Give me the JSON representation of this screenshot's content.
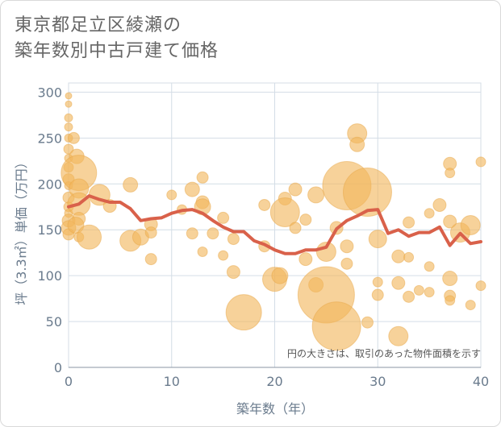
{
  "title": {
    "line1": "東京都足立区綾瀬の",
    "line2": "築年数別中古戸建て価格"
  },
  "chart_data": {
    "type": "scatter",
    "title": "東京都足立区綾瀬の築年数別中古戸建て価格",
    "xlabel": "築年数（年）",
    "ylabel": "坪（3.3㎡）単価（万円）",
    "xlim": [
      0,
      40
    ],
    "ylim": [
      0,
      310
    ],
    "xticks": [
      0,
      10,
      20,
      30,
      40
    ],
    "yticks": [
      0,
      50,
      100,
      150,
      200,
      250,
      300
    ],
    "grid": true,
    "note": "円の大きさは、取引のあった物件面積を示す",
    "colors": {
      "bubble": "#f2b75c",
      "line": "#d9614a",
      "grid": "#d4dde6",
      "text": "#6a7b8d"
    },
    "series": [
      {
        "type": "bubble",
        "points": [
          {
            "x": 0,
            "y": 296,
            "s": 4
          },
          {
            "x": 0,
            "y": 287,
            "s": 4
          },
          {
            "x": 0,
            "y": 272,
            "s": 5
          },
          {
            "x": 0,
            "y": 262,
            "s": 5
          },
          {
            "x": 0,
            "y": 250,
            "s": 5
          },
          {
            "x": 0,
            "y": 238,
            "s": 6
          },
          {
            "x": 0,
            "y": 228,
            "s": 5
          },
          {
            "x": 0,
            "y": 218,
            "s": 6
          },
          {
            "x": 0,
            "y": 205,
            "s": 7
          },
          {
            "x": 0,
            "y": 198,
            "s": 5
          },
          {
            "x": 0,
            "y": 185,
            "s": 7
          },
          {
            "x": 0,
            "y": 175,
            "s": 6
          },
          {
            "x": 0,
            "y": 168,
            "s": 5
          },
          {
            "x": 0,
            "y": 160,
            "s": 8
          },
          {
            "x": 0,
            "y": 152,
            "s": 9
          },
          {
            "x": 0,
            "y": 145,
            "s": 7
          },
          {
            "x": 0.5,
            "y": 250,
            "s": 7
          },
          {
            "x": 0.8,
            "y": 230,
            "s": 9
          },
          {
            "x": 1,
            "y": 212,
            "s": 22
          },
          {
            "x": 1,
            "y": 195,
            "s": 12
          },
          {
            "x": 1,
            "y": 178,
            "s": 14
          },
          {
            "x": 1,
            "y": 162,
            "s": 8
          },
          {
            "x": 0.7,
            "y": 155,
            "s": 10
          },
          {
            "x": 1,
            "y": 142,
            "s": 6
          },
          {
            "x": 2,
            "y": 142,
            "s": 15
          },
          {
            "x": 3,
            "y": 188,
            "s": 13
          },
          {
            "x": 4,
            "y": 176,
            "s": 8
          },
          {
            "x": 6,
            "y": 199,
            "s": 9
          },
          {
            "x": 6,
            "y": 138,
            "s": 13
          },
          {
            "x": 7,
            "y": 142,
            "s": 10
          },
          {
            "x": 8,
            "y": 156,
            "s": 8
          },
          {
            "x": 8,
            "y": 147,
            "s": 7
          },
          {
            "x": 8,
            "y": 118,
            "s": 7
          },
          {
            "x": 10,
            "y": 188,
            "s": 6
          },
          {
            "x": 11,
            "y": 172,
            "s": 6
          },
          {
            "x": 12,
            "y": 194,
            "s": 9
          },
          {
            "x": 12,
            "y": 146,
            "s": 7
          },
          {
            "x": 13,
            "y": 207,
            "s": 7
          },
          {
            "x": 13,
            "y": 180,
            "s": 8
          },
          {
            "x": 13,
            "y": 175,
            "s": 10
          },
          {
            "x": 13,
            "y": 126,
            "s": 6
          },
          {
            "x": 14,
            "y": 146,
            "s": 7
          },
          {
            "x": 15,
            "y": 163,
            "s": 7
          },
          {
            "x": 15,
            "y": 122,
            "s": 6
          },
          {
            "x": 16,
            "y": 104,
            "s": 8
          },
          {
            "x": 16,
            "y": 140,
            "s": 7
          },
          {
            "x": 17,
            "y": 60,
            "s": 22
          },
          {
            "x": 19,
            "y": 177,
            "s": 7
          },
          {
            "x": 19,
            "y": 132,
            "s": 7
          },
          {
            "x": 20,
            "y": 96,
            "s": 15
          },
          {
            "x": 20.5,
            "y": 100,
            "s": 10
          },
          {
            "x": 21,
            "y": 184,
            "s": 8
          },
          {
            "x": 21,
            "y": 169,
            "s": 18
          },
          {
            "x": 22,
            "y": 194,
            "s": 8
          },
          {
            "x": 22,
            "y": 152,
            "s": 7
          },
          {
            "x": 23,
            "y": 161,
            "s": 7
          },
          {
            "x": 23,
            "y": 118,
            "s": 8
          },
          {
            "x": 24,
            "y": 188,
            "s": 10
          },
          {
            "x": 24,
            "y": 90,
            "s": 9
          },
          {
            "x": 25,
            "y": 79,
            "s": 35
          },
          {
            "x": 25,
            "y": 126,
            "s": 12
          },
          {
            "x": 26,
            "y": 152,
            "s": 8
          },
          {
            "x": 26,
            "y": 45,
            "s": 30
          },
          {
            "x": 27,
            "y": 198,
            "s": 30
          },
          {
            "x": 27,
            "y": 132,
            "s": 8
          },
          {
            "x": 27,
            "y": 113,
            "s": 7
          },
          {
            "x": 28,
            "y": 255,
            "s": 12
          },
          {
            "x": 28,
            "y": 243,
            "s": 9
          },
          {
            "x": 29,
            "y": 191,
            "s": 30
          },
          {
            "x": 29,
            "y": 49,
            "s": 7
          },
          {
            "x": 30,
            "y": 140,
            "s": 11
          },
          {
            "x": 30,
            "y": 93,
            "s": 6
          },
          {
            "x": 30,
            "y": 79,
            "s": 7
          },
          {
            "x": 32,
            "y": 121,
            "s": 8
          },
          {
            "x": 32,
            "y": 92,
            "s": 8
          },
          {
            "x": 32,
            "y": 34,
            "s": 12
          },
          {
            "x": 33,
            "y": 158,
            "s": 7
          },
          {
            "x": 33,
            "y": 120,
            "s": 6
          },
          {
            "x": 33,
            "y": 77,
            "s": 7
          },
          {
            "x": 34,
            "y": 84,
            "s": 6
          },
          {
            "x": 35,
            "y": 168,
            "s": 6
          },
          {
            "x": 35,
            "y": 110,
            "s": 6
          },
          {
            "x": 35,
            "y": 82,
            "s": 6
          },
          {
            "x": 36,
            "y": 177,
            "s": 8
          },
          {
            "x": 37,
            "y": 222,
            "s": 8
          },
          {
            "x": 37,
            "y": 212,
            "s": 6
          },
          {
            "x": 37,
            "y": 159,
            "s": 8
          },
          {
            "x": 37,
            "y": 97,
            "s": 9
          },
          {
            "x": 37,
            "y": 78,
            "s": 7
          },
          {
            "x": 37,
            "y": 73,
            "s": 6
          },
          {
            "x": 38,
            "y": 147,
            "s": 12
          },
          {
            "x": 39,
            "y": 155,
            "s": 12
          },
          {
            "x": 39,
            "y": 68,
            "s": 6
          },
          {
            "x": 40,
            "y": 224,
            "s": 6
          },
          {
            "x": 40,
            "y": 89,
            "s": 6
          }
        ]
      },
      {
        "type": "line",
        "points": [
          [
            0,
            175
          ],
          [
            1,
            178
          ],
          [
            2,
            187
          ],
          [
            3,
            183
          ],
          [
            4,
            180
          ],
          [
            5,
            180
          ],
          [
            6,
            173
          ],
          [
            7,
            160
          ],
          [
            8,
            162
          ],
          [
            9,
            163
          ],
          [
            10,
            168
          ],
          [
            11,
            171
          ],
          [
            12,
            172
          ],
          [
            13,
            168
          ],
          [
            14,
            160
          ],
          [
            15,
            153
          ],
          [
            16,
            148
          ],
          [
            17,
            148
          ],
          [
            18,
            138
          ],
          [
            19,
            134
          ],
          [
            20,
            128
          ],
          [
            21,
            124
          ],
          [
            22,
            124
          ],
          [
            23,
            128
          ],
          [
            24,
            128
          ],
          [
            25,
            131
          ],
          [
            26,
            151
          ],
          [
            27,
            160
          ],
          [
            28,
            165
          ],
          [
            29,
            171
          ],
          [
            30,
            172
          ],
          [
            31,
            146
          ],
          [
            32,
            150
          ],
          [
            33,
            143
          ],
          [
            34,
            147
          ],
          [
            35,
            147
          ],
          [
            36,
            153
          ],
          [
            37,
            133
          ],
          [
            38,
            146
          ],
          [
            39,
            135
          ],
          [
            40,
            137
          ]
        ]
      }
    ]
  }
}
